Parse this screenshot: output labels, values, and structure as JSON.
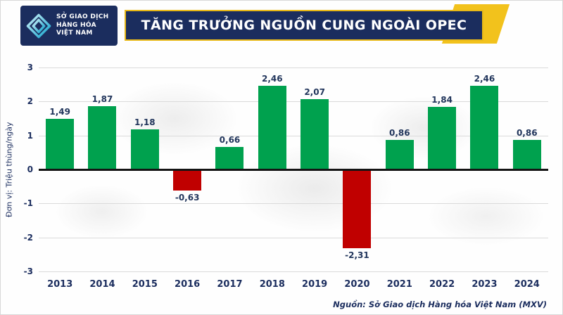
{
  "header": {
    "logo": {
      "lines": [
        "SỞ GIAO DỊCH",
        "HÀNG HÓA",
        "VIỆT NAM"
      ]
    },
    "title": "TĂNG TRƯỞNG NGUỒN CUNG NGOÀI OPEC"
  },
  "chart_data": {
    "type": "bar",
    "title": "TĂNG TRƯỞNG NGUỒN CUNG NGOÀI OPEC",
    "categories": [
      "2013",
      "2014",
      "2015",
      "2016",
      "2017",
      "2018",
      "2019",
      "2020",
      "2021",
      "2022",
      "2023",
      "2024"
    ],
    "values": [
      1.49,
      1.87,
      1.18,
      -0.63,
      0.66,
      2.46,
      2.07,
      -2.31,
      0.86,
      1.84,
      2.46,
      0.86
    ],
    "value_labels": [
      "1,49",
      "1,87",
      "1,18",
      "-0,63",
      "0,66",
      "2,46",
      "2,07",
      "-2,31",
      "0,86",
      "1,84",
      "2,46",
      "0,86"
    ],
    "ylabel": "Đơn vị: Triệu thùng/ngày",
    "ylim": [
      -3,
      3
    ],
    "yticks": [
      3,
      2,
      1,
      0,
      -1,
      -2,
      -3
    ],
    "grid": true,
    "legend": "none",
    "colors": {
      "positive": "#00a14e",
      "negative": "#c00000"
    }
  },
  "footer": {
    "source": "Nguồn: Sở Giao dịch Hàng hóa Việt Nam (MXV)"
  },
  "colors": {
    "navy": "#1b2d5e",
    "gold": "#f2c21c",
    "green": "#00a14e",
    "red": "#c00000",
    "grid": "#dadada"
  }
}
